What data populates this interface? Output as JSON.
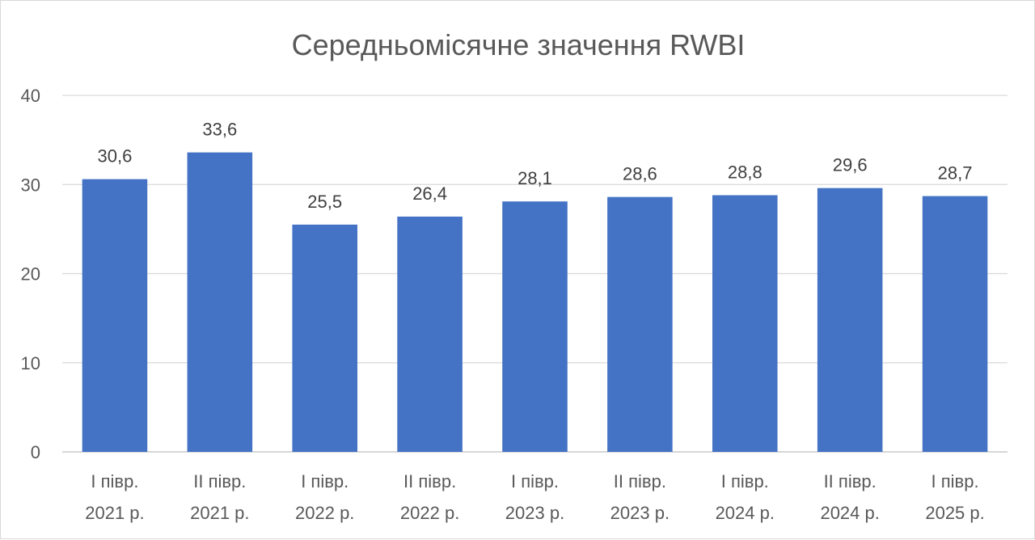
{
  "chart_data": {
    "type": "bar",
    "title": "Середньомісячне значення RWBI",
    "categories": [
      [
        "I півр.",
        "2021 р."
      ],
      [
        "II півр.",
        "2021 р."
      ],
      [
        "I півр.",
        "2022 р."
      ],
      [
        "II півр.",
        "2022 р."
      ],
      [
        "I півр.",
        "2023 р."
      ],
      [
        "II півр.",
        "2023 р."
      ],
      [
        "I півр.",
        "2024 р."
      ],
      [
        "II півр.",
        "2024 р."
      ],
      [
        "I півр.",
        "2025 р."
      ]
    ],
    "values": [
      30.6,
      33.6,
      25.5,
      26.4,
      28.1,
      28.6,
      28.8,
      29.6,
      28.7
    ],
    "data_labels": [
      "30,6",
      "33,6",
      "25,5",
      "26,4",
      "28,1",
      "28,6",
      "28,8",
      "29,6",
      "28,7"
    ],
    "yticks": [
      0,
      10,
      20,
      30,
      40
    ],
    "ylim": [
      0,
      40
    ],
    "xlabel": "",
    "ylabel": "",
    "grid": true,
    "bar_color": "#4472c4"
  }
}
